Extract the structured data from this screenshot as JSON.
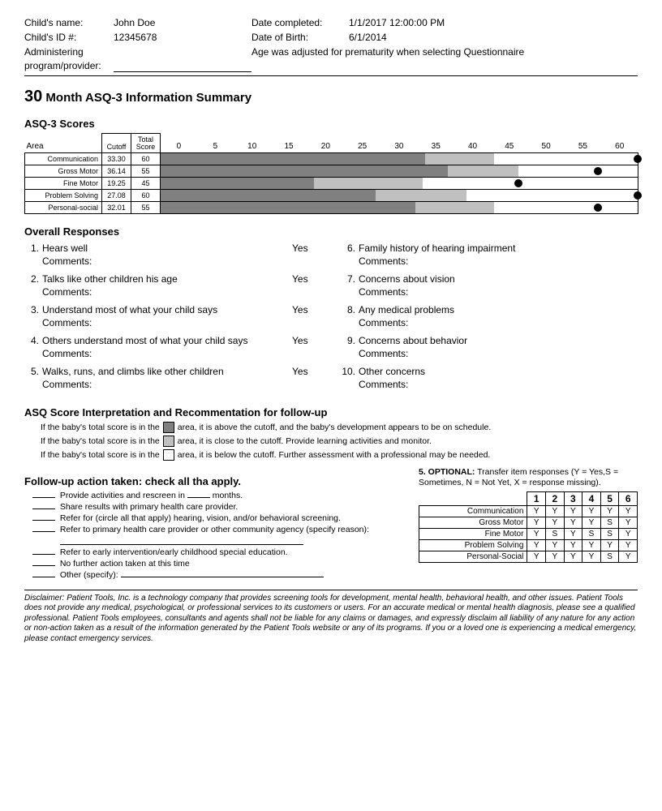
{
  "header": {
    "name_label": "Child's name:",
    "name_value": "John Doe",
    "date_completed_label": "Date completed:",
    "date_completed_value": "1/1/2017 12:00:00 PM",
    "id_label": "Child's ID #:",
    "id_value": "12345678",
    "dob_label": "Date of Birth:",
    "dob_value": "6/1/2014",
    "admin_label": "Administering program/provider:",
    "age_adj_label": "Age was adjusted for prematurity when selecting Questionnaire"
  },
  "title_num": "30",
  "title_rest": " Month ASQ-3 Information Summary",
  "scores": {
    "heading": "ASQ-3 Scores",
    "col_area": "Area",
    "col_cutoff": "Cutoff",
    "col_total": "Total Score",
    "axis_ticks": [
      "0",
      "5",
      "10",
      "15",
      "20",
      "25",
      "30",
      "35",
      "40",
      "45",
      "50",
      "55",
      "60"
    ],
    "axis_max": 60,
    "colors": {
      "dark": "#808080",
      "light": "#c0c0c0",
      "dot": "#000000",
      "border": "#000000",
      "bg": "#ffffff"
    },
    "rows": [
      {
        "area": "Communication",
        "cutoff": "33.30",
        "dark_end": 33.3,
        "light_end": 42.0,
        "total": 60,
        "dot": 60
      },
      {
        "area": "Gross Motor",
        "cutoff": "36.14",
        "dark_end": 36.14,
        "light_end": 45.0,
        "total": 55,
        "dot": 55
      },
      {
        "area": "Fine Motor",
        "cutoff": "19.25",
        "dark_end": 19.25,
        "light_end": 33.0,
        "total": 45,
        "dot": 45
      },
      {
        "area": "Problem Solving",
        "cutoff": "27.08",
        "dark_end": 27.08,
        "light_end": 38.5,
        "total": 60,
        "dot": 60
      },
      {
        "area": "Personal-social",
        "cutoff": "32.01",
        "dark_end": 32.01,
        "light_end": 42.0,
        "total": 55,
        "dot": 55
      }
    ]
  },
  "overall": {
    "heading": "Overall Responses",
    "comments_label": "Comments:",
    "left": [
      {
        "n": "1.",
        "q": "Hears well",
        "a": "Yes"
      },
      {
        "n": "2.",
        "q": "Talks like other children his age",
        "a": "Yes"
      },
      {
        "n": "3.",
        "q": "Understand most of what your child says",
        "a": "Yes"
      },
      {
        "n": "4.",
        "q": "Others understand most of what your child says",
        "a": "Yes"
      },
      {
        "n": "5.",
        "q": "Walks, runs, and climbs like other children",
        "a": "Yes"
      }
    ],
    "right": [
      {
        "n": "6.",
        "q": "Family history of hearing impairment",
        "a": ""
      },
      {
        "n": "7.",
        "q": "Concerns about vision",
        "a": ""
      },
      {
        "n": "8.",
        "q": "Any medical problems",
        "a": ""
      },
      {
        "n": "9.",
        "q": "Concerns about behavior",
        "a": ""
      },
      {
        "n": "10.",
        "q": "Other concerns",
        "a": ""
      }
    ]
  },
  "interp": {
    "heading": "ASQ Score Interpretation and Recommentation for follow-up",
    "prefix": "If the baby's total score is in the",
    "rows": [
      {
        "color": "#808080",
        "text": "area, it is above the cutoff, and the baby's development appears to be on schedule."
      },
      {
        "color": "#c0c0c0",
        "text": "area, it is close to the cutoff. Provide learning activities and monitor."
      },
      {
        "color": "#ffffff",
        "text": "area, it is below the cutoff. Further assessment with a professional may be needed."
      }
    ]
  },
  "followup": {
    "heading": "Follow-up action taken: check all tha apply.",
    "lines": {
      "l1a": "Provide activities and rescreen in ",
      "l1b": " months.",
      "l2": "Share results with primary health care provider.",
      "l3": "Refer for (circle all that apply) hearing, vision, and/or behavioral screening.",
      "l4": "Refer to primary health care provider or other community agency (specify reason):",
      "l5": "Refer to early intervention/early childhood special education.",
      "l6": "No further action taken at this time",
      "l7": "Other (specify): "
    }
  },
  "item_responses": {
    "title_bold": "5. OPTIONAL:",
    "title_rest": " Transfer item responses (Y = Yes,S = Sometimes, N = Not Yet, X = response missing).",
    "cols": [
      "1",
      "2",
      "3",
      "4",
      "5",
      "6"
    ],
    "rows": [
      {
        "label": "Communication",
        "vals": [
          "Y",
          "Y",
          "Y",
          "Y",
          "Y",
          "Y"
        ]
      },
      {
        "label": "Gross Motor",
        "vals": [
          "Y",
          "Y",
          "Y",
          "Y",
          "S",
          "Y"
        ]
      },
      {
        "label": "Fine Motor",
        "vals": [
          "Y",
          "S",
          "Y",
          "S",
          "S",
          "Y"
        ]
      },
      {
        "label": "Problem Solving",
        "vals": [
          "Y",
          "Y",
          "Y",
          "Y",
          "Y",
          "Y"
        ]
      },
      {
        "label": "Personal-Social",
        "vals": [
          "Y",
          "Y",
          "Y",
          "Y",
          "S",
          "Y"
        ]
      }
    ]
  },
  "disclaimer": "Disclaimer: Patient Tools, Inc. is a technology company that provides screening tools for development, mental health, behavioral health, and other issues. Patient Tools does not provide any medical, psychological, or professional services to its customers or users. For an accurate medical or mental health diagnosis, please see a qualified professional. Patient Tools employees, consultants and agents shall not be liable for any claims or damages, and expressly disclaim all liability of any nature for any action or non-action taken as a result of the information generated by the Patient Tools website or any of its programs. If you or a loved one is experiencing a medical emergency, please contact emergency services."
}
